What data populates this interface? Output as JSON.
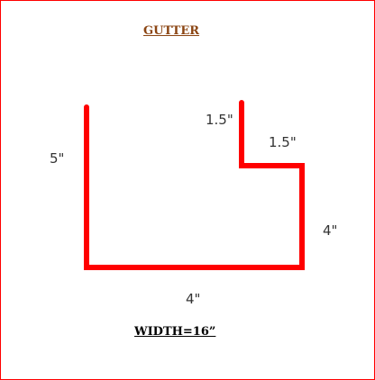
{
  "title": "GUTTER",
  "width_note": "WIDTH=16”",
  "dimensions": {
    "back_height": "5\"",
    "bottom": "4\"",
    "front_height": "4\"",
    "lip_width": "1.5\"",
    "lip_height": "1.5\""
  },
  "profile_color": "#ff0000",
  "frame_color": "#ff0000",
  "title_color": "#8b4513"
}
